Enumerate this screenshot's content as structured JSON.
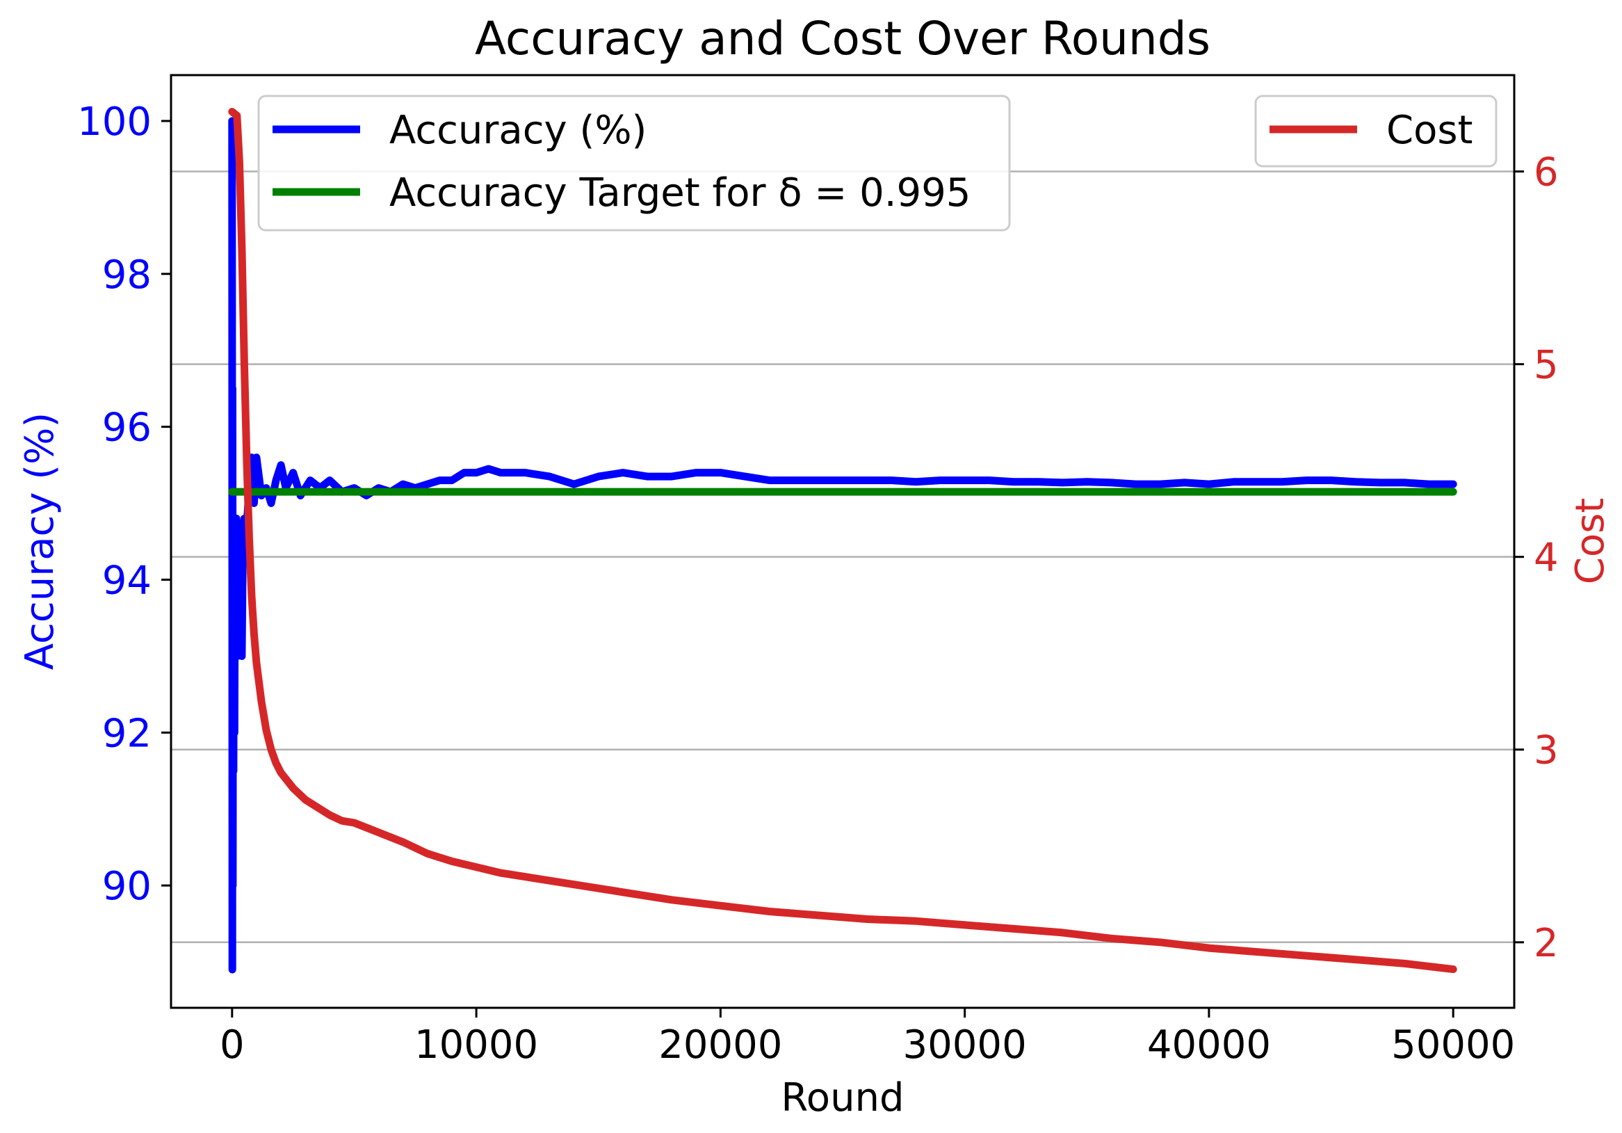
{
  "chart_data": {
    "type": "line",
    "title": "Accuracy and Cost Over Rounds",
    "xlabel": "Round",
    "xlim": [
      -2500,
      52500
    ],
    "x_ticks": [
      0,
      10000,
      20000,
      30000,
      40000,
      50000
    ],
    "grid": "horizontal lines at right-axis (Cost) ticks",
    "left_axis": {
      "label": "Accuracy (%)",
      "color": "#0000ff",
      "ylim": [
        88.4,
        100.6
      ],
      "ticks": [
        90,
        92,
        94,
        96,
        98,
        100
      ]
    },
    "right_axis": {
      "label": "Cost",
      "color": "#d62728",
      "ylim": [
        1.66,
        6.5
      ],
      "ticks": [
        2,
        3,
        4,
        5,
        6
      ]
    },
    "legends": [
      {
        "placement": "upper-left",
        "entries": [
          "Accuracy (%)",
          "Accuracy Target for δ = 0.995"
        ]
      },
      {
        "placement": "upper-right",
        "entries": [
          "Cost"
        ]
      }
    ],
    "series": [
      {
        "name": "Accuracy (%)",
        "axis": "left",
        "color": "#0000ff",
        "x": [
          0,
          10,
          20,
          30,
          40,
          60,
          80,
          100,
          120,
          150,
          180,
          220,
          260,
          300,
          350,
          400,
          450,
          500,
          600,
          700,
          800,
          900,
          1000,
          1200,
          1400,
          1600,
          1800,
          2000,
          2200,
          2500,
          2800,
          3200,
          3600,
          4000,
          4500,
          5000,
          5500,
          6000,
          6500,
          7000,
          7500,
          8000,
          8500,
          9000,
          9500,
          10000,
          10500,
          11000,
          12000,
          13000,
          14000,
          15000,
          16000,
          17000,
          18000,
          19000,
          20000,
          21000,
          22000,
          23000,
          24000,
          25000,
          26000,
          27000,
          28000,
          29000,
          30000,
          31000,
          32000,
          33000,
          34000,
          35000,
          36000,
          37000,
          38000,
          39000,
          40000,
          41000,
          42000,
          43000,
          44000,
          45000,
          46000,
          47000,
          48000,
          49000,
          50000
        ],
        "y": [
          100,
          88.9,
          96.5,
          90.0,
          93.5,
          91.5,
          94.6,
          92.0,
          94.2,
          94.0,
          94.8,
          93.0,
          94.7,
          93.4,
          94.5,
          93.0,
          94.6,
          94.8,
          94.7,
          95.2,
          95.6,
          95.0,
          95.6,
          95.1,
          95.2,
          95.0,
          95.3,
          95.5,
          95.2,
          95.4,
          95.1,
          95.3,
          95.2,
          95.3,
          95.15,
          95.2,
          95.1,
          95.2,
          95.15,
          95.25,
          95.2,
          95.25,
          95.3,
          95.3,
          95.4,
          95.4,
          95.45,
          95.4,
          95.4,
          95.35,
          95.25,
          95.35,
          95.4,
          95.35,
          95.35,
          95.4,
          95.4,
          95.35,
          95.3,
          95.3,
          95.3,
          95.3,
          95.3,
          95.3,
          95.28,
          95.3,
          95.3,
          95.3,
          95.28,
          95.28,
          95.27,
          95.28,
          95.27,
          95.25,
          95.25,
          95.27,
          95.25,
          95.28,
          95.28,
          95.28,
          95.3,
          95.3,
          95.28,
          95.27,
          95.27,
          95.25,
          95.25
        ]
      },
      {
        "name": "Accuracy Target for δ = 0.995",
        "axis": "left",
        "color": "#008000",
        "x": [
          0,
          50000
        ],
        "y": [
          95.15,
          95.15
        ]
      },
      {
        "name": "Cost",
        "axis": "right",
        "color": "#d62728",
        "x": [
          0,
          100,
          200,
          300,
          400,
          500,
          600,
          700,
          800,
          900,
          1000,
          1200,
          1400,
          1600,
          1800,
          2000,
          2500,
          3000,
          3500,
          4000,
          4500,
          5000,
          6000,
          7000,
          8000,
          9000,
          10000,
          11000,
          12000,
          14000,
          16000,
          18000,
          20000,
          22000,
          24000,
          26000,
          28000,
          30000,
          32000,
          34000,
          36000,
          38000,
          40000,
          42000,
          44000,
          46000,
          48000,
          50000
        ],
        "y": [
          6.31,
          6.3,
          6.29,
          6.05,
          5.6,
          5.0,
          4.5,
          4.1,
          3.8,
          3.6,
          3.45,
          3.25,
          3.1,
          3.0,
          2.93,
          2.88,
          2.8,
          2.74,
          2.7,
          2.66,
          2.63,
          2.62,
          2.57,
          2.52,
          2.46,
          2.42,
          2.39,
          2.36,
          2.34,
          2.3,
          2.26,
          2.22,
          2.19,
          2.16,
          2.14,
          2.12,
          2.11,
          2.09,
          2.07,
          2.05,
          2.02,
          2.0,
          1.97,
          1.95,
          1.93,
          1.91,
          1.89,
          1.86
        ]
      }
    ]
  }
}
